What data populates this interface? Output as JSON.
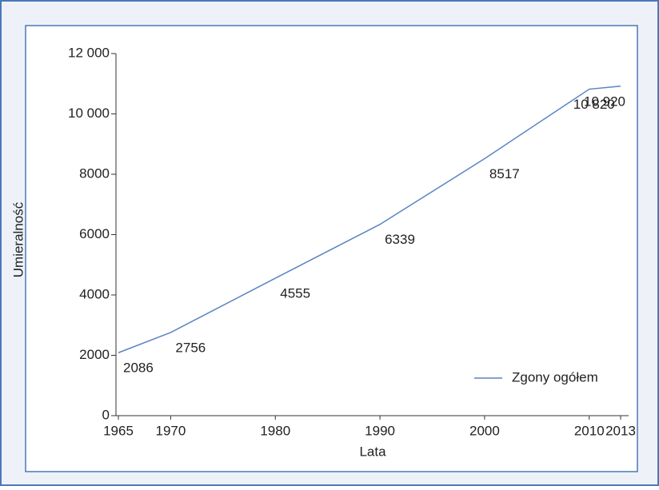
{
  "chart_data": {
    "type": "line",
    "x_label": "Lata",
    "y_label": "Umieralność",
    "x": [
      1965,
      1970,
      1980,
      1990,
      2000,
      2010,
      2013
    ],
    "series": [
      {
        "name": "Zgony ogółem",
        "color": "#5a84c2",
        "values": [
          2086,
          2756,
          4555,
          6339,
          8517,
          10820,
          10920
        ],
        "value_labels": [
          "2086",
          "2756",
          "4555",
          "6339",
          "8517",
          "10 820",
          "10 920"
        ]
      }
    ],
    "xlim": [
      1965,
      2013
    ],
    "xticks": [
      1965,
      1970,
      1980,
      1990,
      2000,
      2010,
      2013
    ],
    "ylim": [
      0,
      12000
    ],
    "yticks": [
      0,
      2000,
      4000,
      6000,
      8000,
      {
        "value": 10000,
        "label": "10 000"
      },
      {
        "value": 12000,
        "label": "12 000"
      }
    ],
    "grid": false,
    "legend": "lower right"
  }
}
